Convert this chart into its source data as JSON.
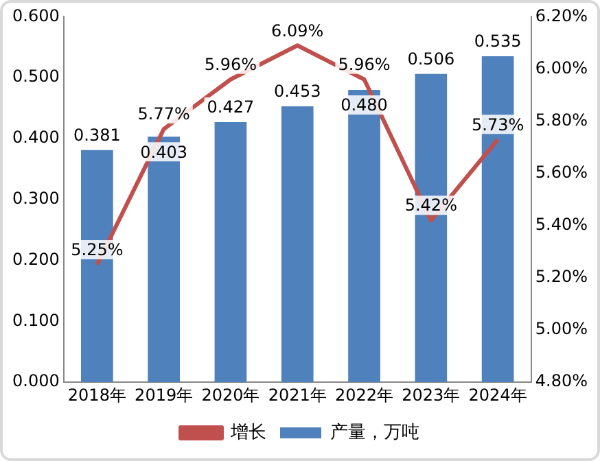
{
  "chart_data": {
    "type": "bar",
    "categories": [
      "2018年",
      "2019年",
      "2020年",
      "2021年",
      "2022年",
      "2023年",
      "2024年"
    ],
    "series": [
      {
        "name": "产量，万吨",
        "color": "#4f81bd",
        "values": [
          0.381,
          0.403,
          0.427,
          0.453,
          0.48,
          0.506,
          0.535
        ],
        "value_labels": [
          "0.381",
          "0.403",
          "0.427",
          "0.453",
          "0.480",
          "0.506",
          "0.535"
        ]
      },
      {
        "name": "增长",
        "type": "line",
        "axis": "y2",
        "color": "#c0504d",
        "values": [
          5.25,
          5.77,
          5.96,
          6.09,
          5.96,
          5.42,
          5.73
        ],
        "value_labels": [
          "5.25%",
          "5.77%",
          "5.96%",
          "6.09%",
          "5.96%",
          "5.42%",
          "5.73%"
        ]
      }
    ],
    "ylim": [
      0,
      0.6
    ],
    "yticks": [
      {
        "value": 0,
        "label": "0.000"
      },
      {
        "value": 0.1,
        "label": "0.100"
      },
      {
        "value": 0.2,
        "label": "0.200"
      },
      {
        "value": 0.3,
        "label": "0.300"
      },
      {
        "value": 0.4,
        "label": "0.400"
      },
      {
        "value": 0.5,
        "label": "0.500"
      },
      {
        "value": 0.6,
        "label": "0.600"
      }
    ],
    "y2lim": [
      4.8,
      6.2
    ],
    "y2ticks": [
      {
        "value": 4.8,
        "label": "4.80%"
      },
      {
        "value": 5.0,
        "label": "5.00%"
      },
      {
        "value": 5.2,
        "label": "5.20%"
      },
      {
        "value": 5.4,
        "label": "5.40%"
      },
      {
        "value": 5.6,
        "label": "5.60%"
      },
      {
        "value": 5.8,
        "label": "5.80%"
      },
      {
        "value": 6.0,
        "label": "6.00%"
      },
      {
        "value": 6.2,
        "label": "6.20%"
      }
    ],
    "grid": false,
    "legend": "bottom",
    "marker": "none",
    "line_style": "solid"
  }
}
